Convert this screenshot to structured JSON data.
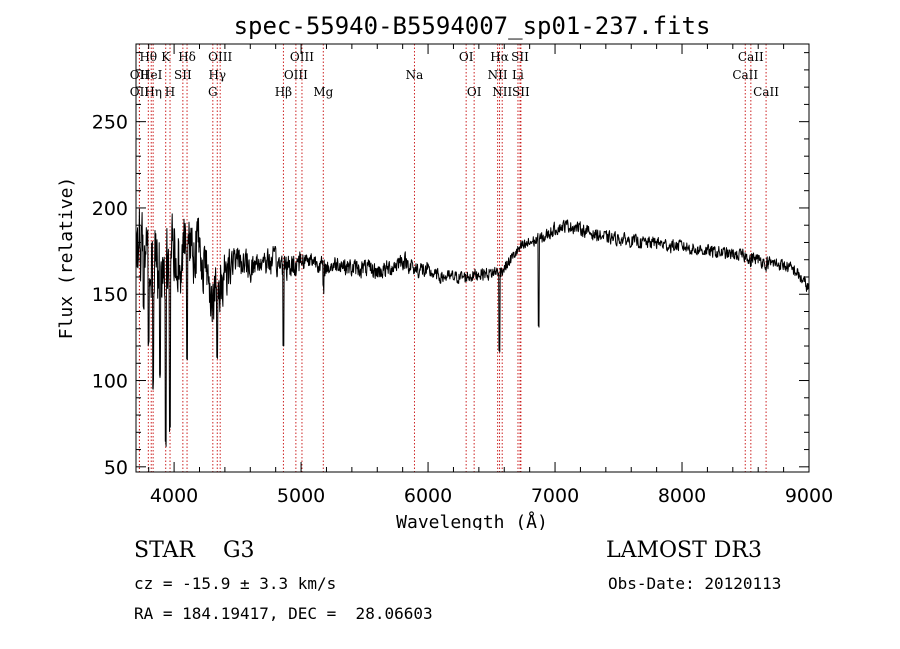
{
  "chart_data": {
    "type": "line",
    "title": "spec-55940-B5594007_sp01-237.fits",
    "xlabel": "Wavelength (Å)",
    "ylabel": "Flux (relative)",
    "xlim": [
      3700,
      9000
    ],
    "ylim": [
      47,
      295
    ],
    "xticks": [
      4000,
      5000,
      6000,
      7000,
      8000,
      9000
    ],
    "yticks": [
      50,
      100,
      150,
      200,
      250
    ],
    "grid": false,
    "colors": {
      "spectrum": "#000000",
      "lines": "#cc2222",
      "axes": "#000000"
    },
    "spectrum_anchors": [
      [
        3700,
        185
      ],
      [
        3750,
        175
      ],
      [
        3800,
        170
      ],
      [
        3850,
        165
      ],
      [
        3900,
        160
      ],
      [
        3950,
        175
      ],
      [
        4000,
        175
      ],
      [
        4050,
        170
      ],
      [
        4100,
        185
      ],
      [
        4150,
        180
      ],
      [
        4200,
        175
      ],
      [
        4250,
        165
      ],
      [
        4300,
        150
      ],
      [
        4350,
        150
      ],
      [
        4400,
        165
      ],
      [
        4450,
        168
      ],
      [
        4500,
        170
      ],
      [
        4600,
        165
      ],
      [
        4700,
        170
      ],
      [
        4800,
        168
      ],
      [
        4900,
        165
      ],
      [
        5000,
        170
      ],
      [
        5100,
        170
      ],
      [
        5200,
        165
      ],
      [
        5300,
        168
      ],
      [
        5400,
        165
      ],
      [
        5500,
        165
      ],
      [
        5600,
        163
      ],
      [
        5700,
        165
      ],
      [
        5800,
        170
      ],
      [
        5900,
        165
      ],
      [
        6000,
        163
      ],
      [
        6100,
        160
      ],
      [
        6200,
        160
      ],
      [
        6300,
        160
      ],
      [
        6400,
        162
      ],
      [
        6500,
        162
      ],
      [
        6600,
        165
      ],
      [
        6700,
        175
      ],
      [
        6800,
        180
      ],
      [
        6900,
        182
      ],
      [
        7000,
        188
      ],
      [
        7100,
        190
      ],
      [
        7200,
        188
      ],
      [
        7300,
        185
      ],
      [
        7400,
        183
      ],
      [
        7500,
        182
      ],
      [
        7600,
        181
      ],
      [
        7700,
        180
      ],
      [
        7800,
        180
      ],
      [
        7900,
        178
      ],
      [
        8000,
        178
      ],
      [
        8100,
        176
      ],
      [
        8200,
        175
      ],
      [
        8300,
        174
      ],
      [
        8400,
        173
      ],
      [
        8500,
        172
      ],
      [
        8600,
        170
      ],
      [
        8700,
        168
      ],
      [
        8800,
        167
      ],
      [
        8900,
        163
      ],
      [
        9000,
        153
      ]
    ],
    "noise": [
      [
        3700,
        4200,
        30
      ],
      [
        4200,
        4450,
        22
      ],
      [
        4450,
        5000,
        11
      ],
      [
        5000,
        6000,
        7
      ],
      [
        6000,
        9000,
        5
      ]
    ],
    "absorption_features": [
      [
        3760,
        140
      ],
      [
        3800,
        120
      ],
      [
        3835,
        95
      ],
      [
        3890,
        100
      ],
      [
        3934,
        60
      ],
      [
        3968,
        70
      ],
      [
        4102,
        110
      ],
      [
        4340,
        110
      ],
      [
        4861,
        120
      ],
      [
        5175,
        150
      ],
      [
        5890,
        160
      ],
      [
        6563,
        115
      ],
      [
        6870,
        128
      ],
      [
        8542,
        165
      ],
      [
        8662,
        162
      ]
    ],
    "lines": [
      {
        "label": "Hθ",
        "x": 3797,
        "row": 0
      },
      {
        "label": "OII",
        "x": 3727,
        "row": 1
      },
      {
        "label": "OII",
        "x": 3727,
        "row": 2
      },
      {
        "label": "HeI",
        "x": 3820,
        "row": 1
      },
      {
        "label": "Hη",
        "x": 3835,
        "row": 2
      },
      {
        "label": "K",
        "x": 3934,
        "row": 0
      },
      {
        "label": "SII",
        "x": 4069,
        "row": 1
      },
      {
        "label": "H",
        "x": 3968,
        "row": 2
      },
      {
        "label": "Hδ",
        "x": 4102,
        "row": 0
      },
      {
        "label": "OIII",
        "x": 4363,
        "row": 0
      },
      {
        "label": "Hγ",
        "x": 4340,
        "row": 1
      },
      {
        "label": "G",
        "x": 4305,
        "row": 2
      },
      {
        "label": "OIII",
        "x": 5007,
        "row": 0
      },
      {
        "label": "OIII",
        "x": 4959,
        "row": 1
      },
      {
        "label": "Hβ",
        "x": 4861,
        "row": 2
      },
      {
        "label": "Mg",
        "x": 5175,
        "row": 2
      },
      {
        "label": "Na",
        "x": 5893,
        "row": 1
      },
      {
        "label": "OI",
        "x": 6300,
        "row": 0
      },
      {
        "label": "OI",
        "x": 6363,
        "row": 2
      },
      {
        "label": "Hα",
        "x": 6563,
        "row": 0
      },
      {
        "label": "SII",
        "x": 6724,
        "row": 0
      },
      {
        "label": "NII",
        "x": 6548,
        "row": 1
      },
      {
        "label": "Li",
        "x": 6708,
        "row": 1
      },
      {
        "label": "NII",
        "x": 6584,
        "row": 2
      },
      {
        "label": "SII",
        "x": 6731,
        "row": 2
      },
      {
        "label": "CaII",
        "x": 8542,
        "row": 0
      },
      {
        "label": "CaII",
        "x": 8498,
        "row": 1
      },
      {
        "label": "CaII",
        "x": 8662,
        "row": 2
      }
    ]
  },
  "info": {
    "object_class": "STAR    G3",
    "survey": "LAMOST DR3",
    "cz": "cz = -15.9 ± 3.3 km/s",
    "obs_date": "Obs-Date: 20120113",
    "radec": "RA = 184.19417, DEC =  28.06603"
  }
}
